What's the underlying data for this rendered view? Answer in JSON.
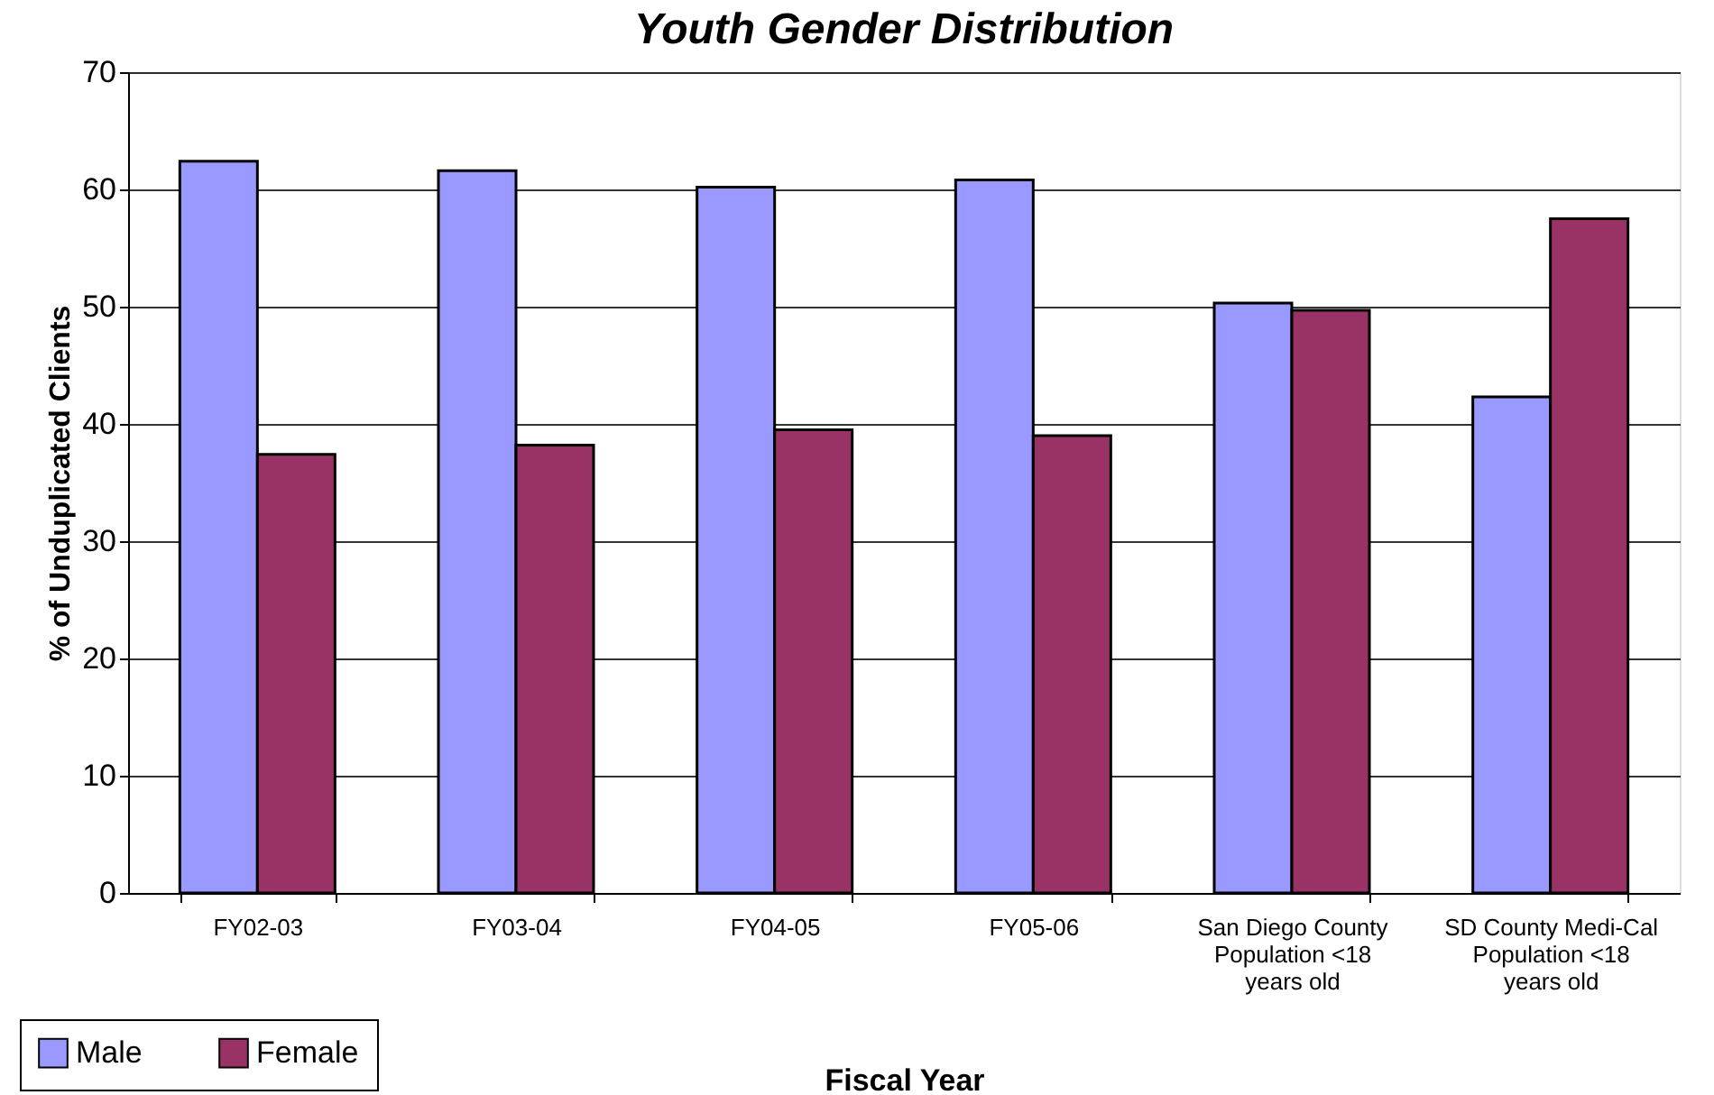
{
  "chart_data": {
    "type": "bar",
    "title": "Youth Gender Distribution",
    "xlabel": "Fiscal Year",
    "ylabel": "% of Unduplicated Clients",
    "categories": [
      "FY02-03",
      "FY03-04",
      "FY04-05",
      "FY05-06",
      "San Diego County Population <18 years old",
      "SD County Medi-Cal Population <18 years old"
    ],
    "series": [
      {
        "name": "Male",
        "color": "#9999ff",
        "values": [
          62.4,
          61.6,
          60.2,
          60.8,
          50.3,
          42.3
        ]
      },
      {
        "name": "Female",
        "color": "#993366",
        "values": [
          37.4,
          38.2,
          39.5,
          39.0,
          49.7,
          57.5
        ]
      }
    ],
    "ylim": [
      0,
      70
    ],
    "yticks": [
      0,
      10,
      20,
      30,
      40,
      50,
      60,
      70
    ],
    "grid": "y",
    "legend": "bottom left"
  }
}
